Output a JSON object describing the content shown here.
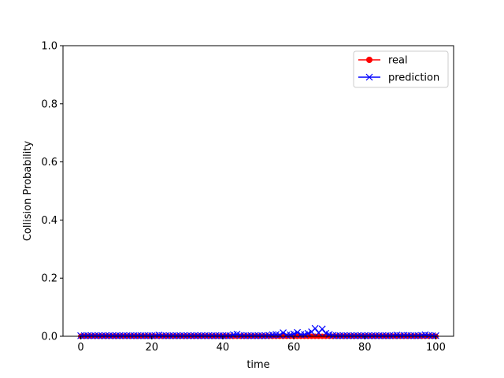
{
  "chart_data": {
    "type": "line",
    "xlabel": "time",
    "ylabel": "Collision Probability",
    "xlim": [
      -5,
      105
    ],
    "ylim": [
      0,
      1
    ],
    "xticks": [
      0,
      20,
      40,
      60,
      80,
      100
    ],
    "yticks": [
      0.0,
      0.2,
      0.4,
      0.6,
      0.8,
      1.0
    ],
    "ytick_labels": [
      "0.0",
      "0.2",
      "0.4",
      "0.6",
      "0.8",
      "1.0"
    ],
    "xtick_labels": [
      "0",
      "20",
      "40",
      "60",
      "80",
      "100"
    ],
    "grid": false,
    "legend_position": "top-right",
    "x": [
      0,
      1,
      2,
      3,
      4,
      5,
      6,
      7,
      8,
      9,
      10,
      11,
      12,
      13,
      14,
      15,
      16,
      17,
      18,
      19,
      20,
      21,
      22,
      23,
      24,
      25,
      26,
      27,
      28,
      29,
      30,
      31,
      32,
      33,
      34,
      35,
      36,
      37,
      38,
      39,
      40,
      41,
      42,
      43,
      44,
      45,
      46,
      47,
      48,
      49,
      50,
      51,
      52,
      53,
      54,
      55,
      56,
      57,
      58,
      59,
      60,
      61,
      62,
      63,
      64,
      65,
      66,
      67,
      68,
      69,
      70,
      71,
      72,
      73,
      74,
      75,
      76,
      77,
      78,
      79,
      80,
      81,
      82,
      83,
      84,
      85,
      86,
      87,
      88,
      89,
      90,
      91,
      92,
      93,
      94,
      95,
      96,
      97,
      98,
      99,
      100
    ],
    "series": [
      {
        "name": "real",
        "color": "#ff0000",
        "marker": "circle",
        "values": [
          0,
          0,
          0,
          0,
          0,
          0,
          0,
          0,
          0,
          0,
          0,
          0,
          0,
          0,
          0,
          0,
          0,
          0,
          0,
          0,
          0,
          0,
          0,
          0,
          0,
          0,
          0,
          0,
          0,
          0,
          0,
          0,
          0,
          0,
          0,
          0,
          0,
          0,
          0,
          0,
          0,
          0,
          0,
          0,
          0,
          0,
          0,
          0,
          0,
          0,
          0,
          0,
          0,
          0,
          0,
          0,
          0,
          0,
          0,
          0,
          0,
          0,
          0,
          0,
          0,
          0,
          0,
          0,
          0,
          0,
          0,
          0,
          0,
          0,
          0,
          0,
          0,
          0,
          0,
          0,
          0,
          0,
          0,
          0,
          0,
          0,
          0,
          0,
          0,
          0,
          0,
          0,
          0,
          0,
          0,
          0,
          0,
          0,
          0,
          0,
          0
        ]
      },
      {
        "name": "prediction",
        "color": "#0000ff",
        "marker": "x",
        "values": [
          0.002,
          0.002,
          0.002,
          0.002,
          0.002,
          0.002,
          0.002,
          0.002,
          0.002,
          0.002,
          0.002,
          0.002,
          0.002,
          0.002,
          0.002,
          0.002,
          0.002,
          0.002,
          0.002,
          0.002,
          0.002,
          0.002,
          0.004,
          0.002,
          0.002,
          0.002,
          0.002,
          0.002,
          0.002,
          0.002,
          0.002,
          0.002,
          0.002,
          0.002,
          0.002,
          0.002,
          0.002,
          0.002,
          0.002,
          0.002,
          0.002,
          0.002,
          0.002,
          0.005,
          0.007,
          0.003,
          0.002,
          0.002,
          0.002,
          0.002,
          0.002,
          0.002,
          0.002,
          0.003,
          0.005,
          0.006,
          0.004,
          0.012,
          0.004,
          0.005,
          0.008,
          0.013,
          0.006,
          0.006,
          0.01,
          0.015,
          0.027,
          0.012,
          0.025,
          0.01,
          0.006,
          0.003,
          0.002,
          0.002,
          0.002,
          0.002,
          0.002,
          0.002,
          0.002,
          0.002,
          0.002,
          0.002,
          0.002,
          0.002,
          0.002,
          0.002,
          0.002,
          0.002,
          0.002,
          0.004,
          0.002,
          0.003,
          0.003,
          0.002,
          0.002,
          0.002,
          0.003,
          0.005,
          0.003,
          0.002,
          0.002
        ]
      }
    ]
  }
}
